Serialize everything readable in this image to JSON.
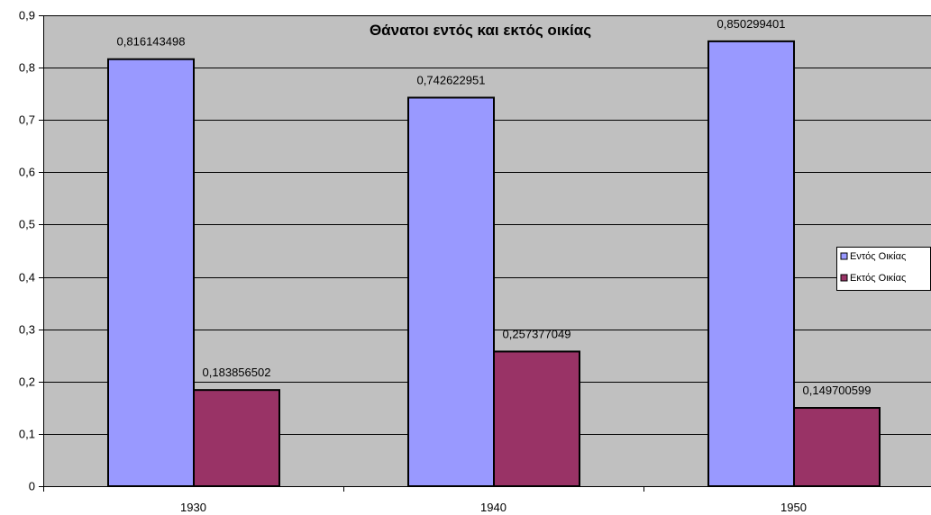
{
  "chart_data": {
    "type": "bar",
    "title": "Θάνατοι εντός και εκτός οικίας",
    "xlabel": "",
    "ylabel": "",
    "categories": [
      "1930",
      "1940",
      "1950"
    ],
    "series": [
      {
        "name": "Εντός Οικίας",
        "values": [
          0.816143498,
          0.742622951,
          0.850299401
        ],
        "labels": [
          "0,816143498",
          "0,742622951",
          "0,850299401"
        ],
        "color": "#9999FF"
      },
      {
        "name": "Εκτός Οικίας",
        "values": [
          0.183856502,
          0.257377049,
          0.149700599
        ],
        "labels": [
          "0,183856502",
          "0,257377049",
          "0,149700599"
        ],
        "color": "#993366"
      }
    ],
    "ylim": [
      0,
      0.9
    ],
    "yticks": [
      0,
      0.1,
      0.2,
      0.3,
      0.4,
      0.5,
      0.6,
      0.7,
      0.8,
      0.9
    ],
    "ytick_labels": [
      "0",
      "0,1",
      "0,2",
      "0,3",
      "0,4",
      "0,5",
      "0,6",
      "0,7",
      "0,8",
      "0,9"
    ],
    "grid": true,
    "legend": "right",
    "plot_background": "#C0C0C0",
    "gridline_color": "#000000"
  }
}
